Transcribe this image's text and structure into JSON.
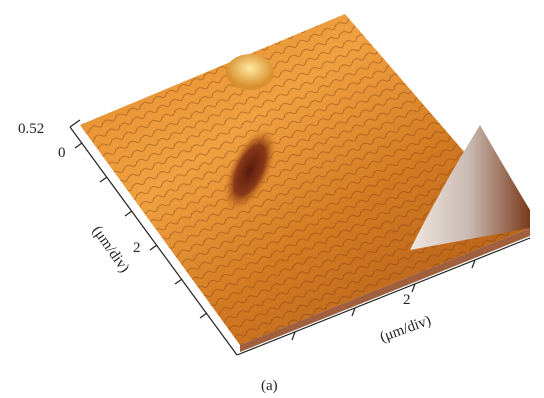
{
  "z_axis": {
    "ticks": [
      "0.52"
    ]
  },
  "y_axis": {
    "ticks": [
      "0",
      "2"
    ],
    "label": "(μm/div)"
  },
  "x_axis": {
    "ticks": [
      "2"
    ],
    "label": "(μm/div)"
  },
  "caption": "(a)"
}
